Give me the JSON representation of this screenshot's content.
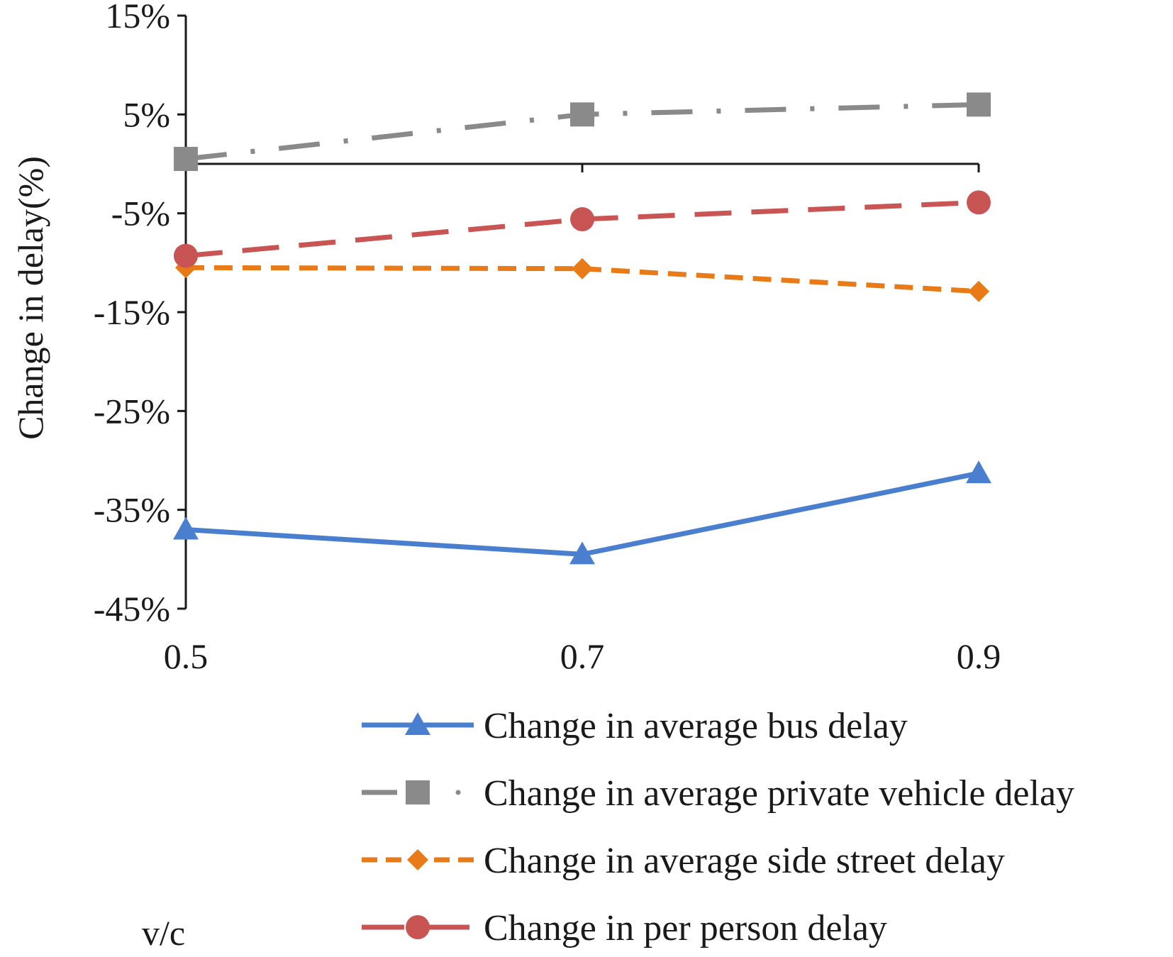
{
  "chart_data": {
    "type": "line",
    "title": "",
    "xlabel": "v/c",
    "ylabel": "Change in delay(%)",
    "x": [
      0.5,
      0.7,
      0.9
    ],
    "x_tick_labels": [
      "0.5",
      "0.7",
      "0.9"
    ],
    "ylim": [
      -45,
      15
    ],
    "y_ticks": [
      15,
      5,
      -5,
      -15,
      -25,
      -35,
      -45
    ],
    "y_tick_labels": [
      "15%",
      "5%",
      "-5%",
      "-15%",
      "-25%",
      "-35%",
      "-45%"
    ],
    "grid": false,
    "legend_position": "bottom-right",
    "series": [
      {
        "name": "Change in average bus delay",
        "values": [
          -37,
          -39.5,
          -31.3
        ],
        "color": "#4a7fd0",
        "marker": "triangle",
        "dash": "solid"
      },
      {
        "name": "Change in average private vehicle delay",
        "values": [
          0.5,
          5,
          6
        ],
        "color": "#8a8a8a",
        "marker": "square",
        "dash": "dashdot"
      },
      {
        "name": "Change in average side street delay",
        "values": [
          -10.5,
          -10.6,
          -12.9
        ],
        "color": "#e87a18",
        "marker": "diamond",
        "dash": "dash"
      },
      {
        "name": "Change in per person delay",
        "values": [
          -9.3,
          -5.6,
          -3.9
        ],
        "color": "#c85553",
        "marker": "circle",
        "dash": "longdash"
      }
    ]
  }
}
